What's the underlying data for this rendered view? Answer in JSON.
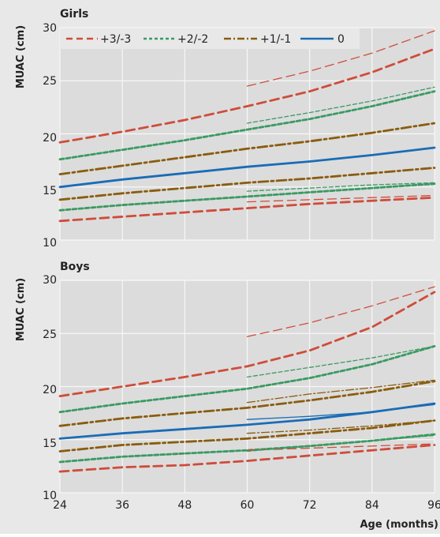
{
  "chart_data": [
    {
      "type": "line",
      "title": "Girls",
      "ylabel": "MUAC (cm)",
      "xlabel": "",
      "xlim": [
        24,
        96
      ],
      "ylim": [
        10,
        30
      ],
      "yticks": [
        "10",
        "15",
        "20",
        "25",
        "30"
      ],
      "xticks": [
        24,
        36,
        48,
        60,
        72,
        84,
        96
      ],
      "grid": true,
      "legend": [
        {
          "label": "+3/-3",
          "color": "#cf4c3a"
        },
        {
          "label": "+2/-2",
          "color": "#3a9a62"
        },
        {
          "label": "+1/-1",
          "color": "#8a5c0e"
        },
        {
          "label": "0",
          "color": "#1a6cb6"
        }
      ],
      "series": [
        {
          "group": "+3/-3",
          "x": [
            24,
            36,
            48,
            60,
            72,
            84,
            96
          ],
          "y": [
            19.2,
            20.2,
            21.3,
            22.6,
            24.0,
            25.8,
            28.0
          ]
        },
        {
          "group": "+3/-3",
          "x": [
            24,
            36,
            48,
            60,
            72,
            84,
            96
          ],
          "y": [
            11.8,
            12.2,
            12.6,
            13.0,
            13.4,
            13.7,
            14.0
          ]
        },
        {
          "group": "+2/-2",
          "x": [
            24,
            36,
            48,
            60,
            72,
            84,
            96
          ],
          "y": [
            17.6,
            18.5,
            19.4,
            20.4,
            21.4,
            22.6,
            24.0
          ]
        },
        {
          "group": "+2/-2",
          "x": [
            24,
            36,
            48,
            60,
            72,
            84,
            96
          ],
          "y": [
            12.8,
            13.3,
            13.7,
            14.1,
            14.5,
            14.9,
            15.3
          ]
        },
        {
          "group": "+1/-1",
          "x": [
            24,
            36,
            48,
            60,
            72,
            84,
            96
          ],
          "y": [
            16.2,
            17.0,
            17.8,
            18.6,
            19.3,
            20.1,
            21.0
          ]
        },
        {
          "group": "+1/-1",
          "x": [
            24,
            36,
            48,
            60,
            72,
            84,
            96
          ],
          "y": [
            13.8,
            14.4,
            14.9,
            15.4,
            15.8,
            16.3,
            16.8
          ]
        },
        {
          "group": "0",
          "x": [
            24,
            36,
            48,
            60,
            72,
            84,
            96
          ],
          "y": [
            15.0,
            15.7,
            16.3,
            16.9,
            17.4,
            18.0,
            18.7
          ]
        },
        {
          "group": "+3/-3",
          "thin": true,
          "x": [
            60,
            72,
            84,
            96
          ],
          "y": [
            24.5,
            25.9,
            27.6,
            29.7
          ]
        },
        {
          "group": "+3/-3",
          "thin": true,
          "x": [
            60,
            72,
            84,
            96
          ],
          "y": [
            13.6,
            13.8,
            14.0,
            14.2
          ]
        },
        {
          "group": "+2/-2",
          "thin": true,
          "x": [
            60,
            72,
            84,
            96
          ],
          "y": [
            21.0,
            22.0,
            23.1,
            24.4
          ]
        },
        {
          "group": "+2/-2",
          "thin": true,
          "x": [
            60,
            72,
            84,
            96
          ],
          "y": [
            14.6,
            14.9,
            15.2,
            15.4
          ]
        }
      ]
    },
    {
      "type": "line",
      "title": "Boys",
      "ylabel": "MUAC (cm)",
      "xlabel": "Age (months)",
      "xlim": [
        24,
        96
      ],
      "ylim": [
        10,
        30
      ],
      "yticks": [
        "10",
        "15",
        "20",
        "25",
        "30"
      ],
      "xticks": [
        24,
        36,
        48,
        60,
        72,
        84,
        96
      ],
      "grid": true,
      "series": [
        {
          "group": "+3/-3",
          "x": [
            24,
            36,
            48,
            60,
            72,
            84,
            96
          ],
          "y": [
            19.1,
            20.0,
            20.9,
            21.9,
            23.4,
            25.6,
            28.9
          ]
        },
        {
          "group": "+3/-3",
          "x": [
            24,
            36,
            48,
            60,
            72,
            84,
            96
          ],
          "y": [
            12.0,
            12.4,
            12.6,
            13.0,
            13.5,
            14.0,
            14.5
          ]
        },
        {
          "group": "+2/-2",
          "x": [
            24,
            36,
            48,
            60,
            72,
            84,
            96
          ],
          "y": [
            17.6,
            18.4,
            19.1,
            19.8,
            20.8,
            22.1,
            23.8
          ]
        },
        {
          "group": "+2/-2",
          "x": [
            24,
            36,
            48,
            60,
            72,
            84,
            96
          ],
          "y": [
            12.9,
            13.4,
            13.7,
            14.0,
            14.4,
            14.9,
            15.5
          ]
        },
        {
          "group": "+1/-1",
          "x": [
            24,
            36,
            48,
            60,
            72,
            84,
            96
          ],
          "y": [
            16.3,
            17.0,
            17.5,
            18.0,
            18.7,
            19.5,
            20.5
          ]
        },
        {
          "group": "+1/-1",
          "x": [
            24,
            36,
            48,
            60,
            72,
            84,
            96
          ],
          "y": [
            13.9,
            14.5,
            14.8,
            15.1,
            15.6,
            16.1,
            16.8
          ]
        },
        {
          "group": "0",
          "x": [
            24,
            36,
            48,
            60,
            72,
            84,
            96
          ],
          "y": [
            15.1,
            15.6,
            16.0,
            16.4,
            16.9,
            17.6,
            18.4
          ]
        },
        {
          "group": "+3/-3",
          "thin": true,
          "x": [
            60,
            72,
            84,
            96
          ],
          "y": [
            24.7,
            26.0,
            27.6,
            29.4
          ]
        },
        {
          "group": "+3/-3",
          "thin": true,
          "x": [
            60,
            72,
            84,
            96
          ],
          "y": [
            14.0,
            14.2,
            14.4,
            14.6
          ]
        },
        {
          "group": "+2/-2",
          "thin": true,
          "x": [
            60,
            72,
            84,
            96
          ],
          "y": [
            20.9,
            21.8,
            22.7,
            23.8
          ]
        },
        {
          "group": "+2/-2",
          "thin": true,
          "x": [
            60,
            72,
            84,
            96
          ],
          "y": [
            13.9,
            14.4,
            14.9,
            15.4
          ]
        },
        {
          "group": "+1/-1",
          "thin": true,
          "x": [
            60,
            72,
            84,
            96
          ],
          "y": [
            18.5,
            19.3,
            19.9,
            20.6
          ]
        },
        {
          "group": "+1/-1",
          "thin": true,
          "x": [
            60,
            72,
            84,
            96
          ],
          "y": [
            15.6,
            15.9,
            16.3,
            16.8
          ]
        },
        {
          "group": "0",
          "thin": true,
          "x": [
            60,
            72,
            84,
            96
          ],
          "y": [
            16.9,
            17.2,
            17.6,
            18.3
          ]
        }
      ]
    }
  ]
}
